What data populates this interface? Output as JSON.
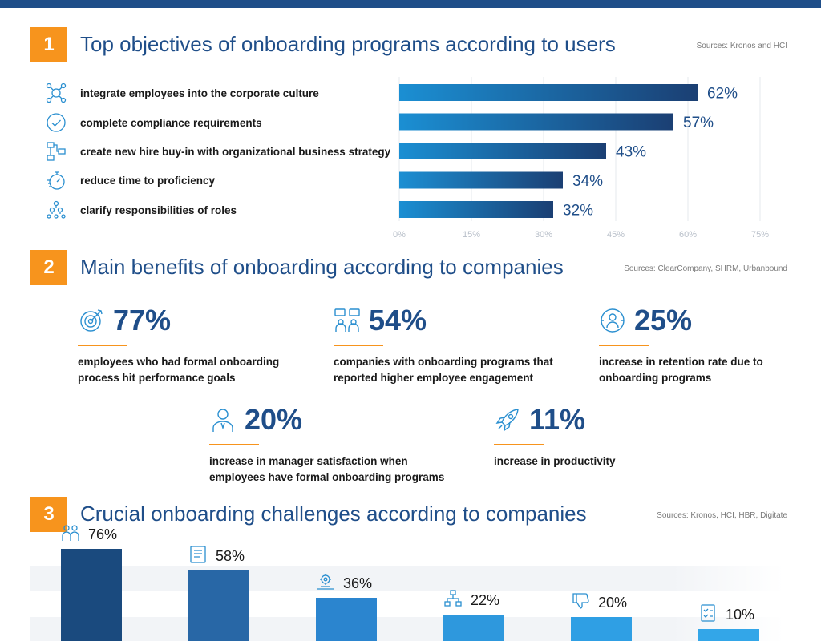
{
  "colors": {
    "accent": "#f7941d",
    "brand": "#1f4e89",
    "bar_start": "#1b8fd3",
    "bar_end": "#1b3f73"
  },
  "sections": [
    {
      "number": "1",
      "title": "Top objectives of onboarding programs according to users",
      "source": "Sources: Kronos and HCI"
    },
    {
      "number": "2",
      "title": "Main benefits of onboarding according to companies",
      "source": "Sources: ClearCompany, SHRM, Urbanbound"
    },
    {
      "number": "3",
      "title": "Crucial onboarding challenges according to companies",
      "source": "Sources: Kronos, HCI, HBR, Digitate"
    }
  ],
  "objectives": [
    {
      "icon": "culture-network-icon",
      "label": "integrate employees into the corporate culture"
    },
    {
      "icon": "checkmark-circle-icon",
      "label": "complete compliance requirements"
    },
    {
      "icon": "strategy-flowchart-icon",
      "label": "create new hire buy-in with organizational business strategy"
    },
    {
      "icon": "stopwatch-icon",
      "label": "reduce time to proficiency"
    },
    {
      "icon": "hierarchy-people-icon",
      "label": "clarify responsibilities of roles"
    }
  ],
  "benefits": [
    {
      "icon": "target-icon",
      "value": "77%",
      "desc_lines": [
        "employees who had formal onboarding",
        "process hit performance goals"
      ]
    },
    {
      "icon": "team-engagement-icon",
      "value": "54%",
      "desc_lines": [
        "companies with onboarding programs that",
        "reported higher employee engagement"
      ]
    },
    {
      "icon": "retention-person-icon",
      "value": "25%",
      "desc_lines": [
        "increase in retention rate due to",
        "onboarding programs"
      ]
    },
    {
      "icon": "manager-icon",
      "value": "20%",
      "desc_lines": [
        "increase in manager satisfaction when",
        "employees have formal onboarding programs"
      ]
    },
    {
      "icon": "rocket-icon",
      "value": "11%",
      "desc_lines": [
        "increase in productivity"
      ]
    }
  ],
  "challenges": [
    {
      "icon": "people-icon",
      "value": "76%"
    },
    {
      "icon": "document-list-icon",
      "value": "58%"
    },
    {
      "icon": "gear-hand-icon",
      "value": "36%"
    },
    {
      "icon": "org-chart-icon",
      "value": "22%"
    },
    {
      "icon": "thumbs-down-icon",
      "value": "20%"
    },
    {
      "icon": "checklist-icon",
      "value": "10%"
    }
  ],
  "chart_data": [
    {
      "type": "bar",
      "orientation": "horizontal",
      "categories": [
        "integrate employees into the corporate culture",
        "complete compliance requirements",
        "create new hire buy-in with organizational business strategy",
        "reduce time to proficiency",
        "clarify responsibilities of roles"
      ],
      "values": [
        62,
        57,
        43,
        34,
        32
      ],
      "data_labels": [
        "62%",
        "57%",
        "43%",
        "34%",
        "32%"
      ],
      "xlim": [
        0,
        75
      ],
      "x_ticks": [
        "0%",
        "15%",
        "30%",
        "45%",
        "60%",
        "75%"
      ],
      "grid": true
    },
    {
      "type": "bar",
      "orientation": "vertical",
      "values": [
        76,
        58,
        36,
        22,
        20,
        10
      ],
      "data_labels": [
        "76%",
        "58%",
        "36%",
        "22%",
        "20%",
        "10%"
      ]
    }
  ]
}
